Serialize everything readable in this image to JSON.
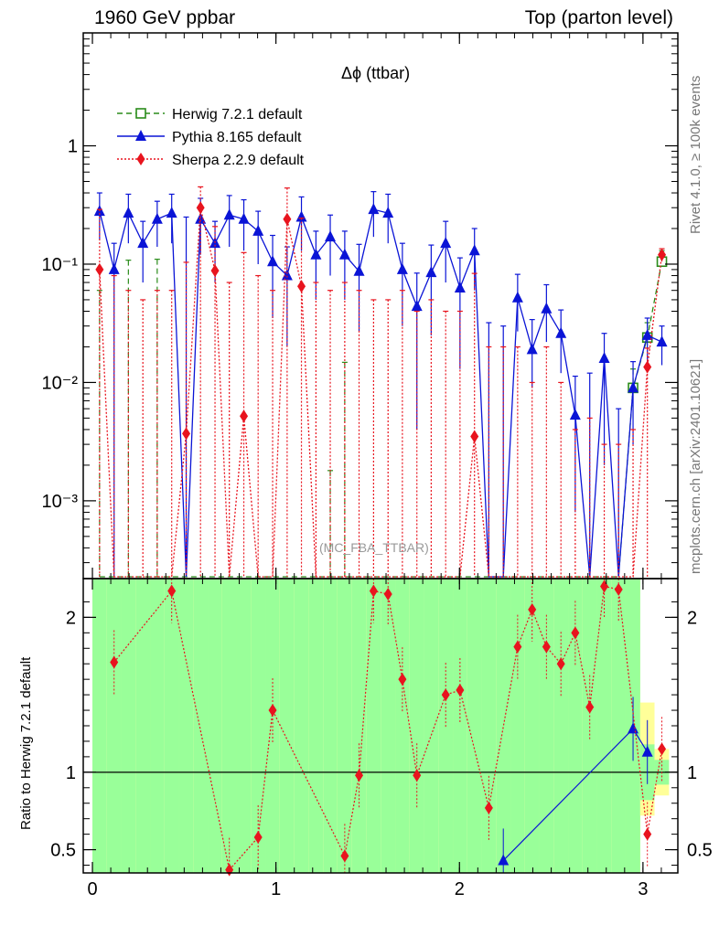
{
  "header": {
    "left": "1960 GeV ppbar",
    "right": "Top (parton level)"
  },
  "side_labels": {
    "rivet": "Rivet 4.1.0, ≥ 100k events",
    "mcplots": "mcplots.cern.ch [arXiv:2401.10621]"
  },
  "colors": {
    "herwig": "#2a8c1a",
    "pythia": "#0a14d6",
    "sherpa": "#e8141e",
    "band_green": "#99ff99",
    "band_yellow": "#ffff99"
  },
  "chart_data": [
    {
      "type": "line",
      "title": "Δϕ (ttbar)",
      "watermark": "(MC_FBA_TTBAR)",
      "xlabel": "",
      "ylabel": "",
      "yscale": "log",
      "xlim": [
        -0.05,
        3.19
      ],
      "ylim": [
        0.00022,
        9
      ],
      "x_ticks": [
        "0",
        "1",
        "2",
        "3"
      ],
      "y_ticks": [
        {
          "value": 0.001,
          "label": "10⁻³"
        },
        {
          "value": 0.01,
          "label": "10⁻²"
        },
        {
          "value": 0.1,
          "label": "10⁻¹"
        },
        {
          "value": 1,
          "label": "1"
        }
      ],
      "legend_position": "top-left",
      "series": [
        {
          "name": "Herwig 7.2.1 default",
          "style": "dashed-open-square",
          "x": [
            0.039,
            0.118,
            0.196,
            0.275,
            0.353,
            0.432,
            0.511,
            0.589,
            0.668,
            0.746,
            0.825,
            0.903,
            0.982,
            1.061,
            1.139,
            1.218,
            1.296,
            1.375,
            1.453,
            1.532,
            1.611,
            1.689,
            1.768,
            1.846,
            1.925,
            2.003,
            2.082,
            2.16,
            2.239,
            2.317,
            2.396,
            2.474,
            2.553,
            2.631,
            2.71,
            2.789,
            2.867,
            2.946,
            3.024,
            3.103
          ],
          "values": [
            0,
            0,
            0,
            0,
            0,
            0,
            0,
            0,
            0,
            0,
            0,
            0,
            0,
            0,
            0,
            0,
            0,
            0,
            0,
            0,
            0,
            0,
            0,
            0,
            0,
            0,
            0,
            0,
            0,
            0,
            0,
            0,
            0,
            0,
            0,
            0,
            0,
            0.009,
            0.024,
            0.105
          ],
          "err_up": [
            0.06,
            0,
            0.108,
            0,
            0.11,
            0,
            0,
            0,
            0,
            0,
            0,
            0,
            0,
            0,
            0,
            0,
            0.0018,
            0.0148,
            0,
            0,
            0,
            0,
            0,
            0,
            0,
            0,
            0,
            0,
            0,
            0,
            0,
            0,
            0,
            0,
            0,
            0,
            0,
            0.004,
            0.008,
            0.025
          ]
        },
        {
          "name": "Pythia 8.165 default",
          "style": "solid-filled-triangle",
          "x": [
            0.039,
            0.118,
            0.196,
            0.275,
            0.353,
            0.432,
            0.511,
            0.589,
            0.668,
            0.746,
            0.825,
            0.903,
            0.982,
            1.061,
            1.139,
            1.218,
            1.296,
            1.375,
            1.453,
            1.532,
            1.611,
            1.689,
            1.768,
            1.846,
            1.925,
            2.003,
            2.082,
            2.16,
            2.239,
            2.317,
            2.396,
            2.474,
            2.553,
            2.631,
            2.71,
            2.789,
            2.867,
            2.946,
            3.024,
            3.103
          ],
          "values": [
            0.28,
            0.09,
            0.27,
            0.15,
            0.24,
            0.27,
            0,
            0.24,
            0.15,
            0.26,
            0.24,
            0.19,
            0.105,
            0.08,
            0.25,
            0.12,
            0.17,
            0.12,
            0.087,
            0.29,
            0.27,
            0.09,
            0.044,
            0.085,
            0.15,
            0.063,
            0.13,
            0,
            0,
            0.052,
            0.019,
            0.042,
            0.026,
            0.0053,
            0,
            0.016,
            0,
            0.009,
            0.025,
            0.022
          ],
          "err_up": [
            0.12,
            0.06,
            0.12,
            0.08,
            0.1,
            0.12,
            0.25,
            0.12,
            0.08,
            0.12,
            0.11,
            0.09,
            0.07,
            0.06,
            0.12,
            0.07,
            0.09,
            0.07,
            0.06,
            0.12,
            0.12,
            0.06,
            0.04,
            0.06,
            0.08,
            0.05,
            0.07,
            0.032,
            0.03,
            0.03,
            0.015,
            0.025,
            0.015,
            0.006,
            0.012,
            0.01,
            0.006,
            0.006,
            0.01,
            0.008
          ],
          "err_down": [
            0.12,
            0.09,
            0.12,
            0.08,
            0.1,
            0.12,
            0,
            0.12,
            0.08,
            0.12,
            0.11,
            0.09,
            0.07,
            0.06,
            0.12,
            0.07,
            0.09,
            0.07,
            0.06,
            0.12,
            0.12,
            0.06,
            0.04,
            0.06,
            0.08,
            0.05,
            0.07,
            0,
            0,
            0.025,
            0.01,
            0.02,
            0.014,
            0.0045,
            0,
            0.014,
            0,
            0.006,
            0.01,
            0.008
          ]
        },
        {
          "name": "Sherpa 2.2.9 default",
          "style": "dotted-filled-diamond",
          "x": [
            0.039,
            0.118,
            0.196,
            0.275,
            0.353,
            0.432,
            0.511,
            0.589,
            0.668,
            0.746,
            0.825,
            0.903,
            0.982,
            1.061,
            1.139,
            1.218,
            1.296,
            1.375,
            1.453,
            1.532,
            1.611,
            1.689,
            1.768,
            1.846,
            1.925,
            2.003,
            2.082,
            2.16,
            2.239,
            2.317,
            2.396,
            2.474,
            2.553,
            2.631,
            2.71,
            2.789,
            2.867,
            2.946,
            3.024,
            3.103
          ],
          "values": [
            0.09,
            0,
            0,
            0,
            0,
            0,
            0.0037,
            0.3,
            0.088,
            0,
            0.0052,
            0,
            0,
            0.24,
            0.065,
            0,
            0,
            0,
            0,
            0,
            0,
            0,
            0,
            0,
            0,
            0,
            0.0035,
            0,
            0,
            0,
            0,
            0,
            0,
            0,
            0,
            0,
            0,
            0,
            0.0135,
            0.12
          ],
          "err_up": [
            0.2,
            0.08,
            0.06,
            0.05,
            0.06,
            0.06,
            0.1,
            0.15,
            0.12,
            0.07,
            0.12,
            0.08,
            0.06,
            0.2,
            0.18,
            0.07,
            0.06,
            0.07,
            0.06,
            0.05,
            0.05,
            0.06,
            0.04,
            0.05,
            0.04,
            0.04,
            0.08,
            0.02,
            0.02,
            0.02,
            0.01,
            0.02,
            0.01,
            0.004,
            0.005,
            0.003,
            0.003,
            0.004,
            0.006,
            0.015
          ],
          "err_down": [
            0.09,
            0,
            0,
            0,
            0,
            0,
            0.0037,
            0.3,
            0.088,
            0,
            0.0052,
            0,
            0,
            0.24,
            0.065,
            0,
            0,
            0,
            0,
            0,
            0,
            0,
            0,
            0,
            0,
            0,
            0.0035,
            0,
            0,
            0,
            0,
            0,
            0,
            0,
            0,
            0,
            0,
            0,
            0.0135,
            0.015
          ]
        }
      ]
    },
    {
      "type": "line",
      "title": "",
      "xlabel": "",
      "ylabel": "Ratio to Herwig 7.2.1 default",
      "yscale": "linear",
      "xlim": [
        -0.05,
        3.19
      ],
      "ylim": [
        0.35,
        2.25
      ],
      "x_ticks": [
        "0",
        "1",
        "2",
        "3"
      ],
      "y_ticks": [
        {
          "value": 0.5,
          "label": "0.5"
        },
        {
          "value": 1,
          "label": "1"
        },
        {
          "value": 2,
          "label": "2"
        }
      ],
      "reference_line": 1,
      "bands": {
        "x_edges": [
          0.0,
          0.078,
          0.157,
          0.235,
          0.314,
          0.392,
          0.471,
          0.55,
          0.628,
          0.707,
          0.785,
          0.864,
          0.942,
          1.021,
          1.1,
          1.178,
          1.257,
          1.335,
          1.414,
          1.492,
          1.571,
          1.65,
          1.728,
          1.807,
          1.885,
          1.964,
          2.042,
          2.121,
          2.199,
          2.278,
          2.356,
          2.435,
          2.513,
          2.592,
          2.67,
          2.749,
          2.827,
          2.906,
          2.985,
          3.063,
          3.142
        ],
        "green_low": [
          0.35,
          0.35,
          0.35,
          0.35,
          0.35,
          0.35,
          0.35,
          0.35,
          0.35,
          0.35,
          0.35,
          0.35,
          0.35,
          0.35,
          0.35,
          0.35,
          0.35,
          0.35,
          0.35,
          0.35,
          0.35,
          0.35,
          0.35,
          0.35,
          0.35,
          0.35,
          0.35,
          0.35,
          0.35,
          0.35,
          0.35,
          0.35,
          0.35,
          0.35,
          0.35,
          0.35,
          0.35,
          0.35,
          0.82,
          0.92
        ],
        "green_high": [
          2.25,
          2.25,
          2.25,
          2.25,
          2.25,
          2.25,
          2.25,
          2.25,
          2.25,
          2.25,
          2.25,
          2.25,
          2.25,
          2.25,
          2.25,
          2.25,
          2.25,
          2.25,
          2.25,
          2.25,
          2.25,
          2.25,
          2.25,
          2.25,
          2.25,
          2.25,
          2.25,
          2.25,
          2.25,
          2.25,
          2.25,
          2.25,
          2.25,
          2.25,
          2.25,
          2.25,
          2.25,
          2.25,
          1.18,
          1.08
        ],
        "yellow_low": [
          0.35,
          0.35,
          0.35,
          0.35,
          0.35,
          0.35,
          0.35,
          0.35,
          0.35,
          0.35,
          0.35,
          0.35,
          0.35,
          0.35,
          0.35,
          0.35,
          0.35,
          0.35,
          0.35,
          0.35,
          0.35,
          0.35,
          0.35,
          0.35,
          0.35,
          0.35,
          0.35,
          0.35,
          0.35,
          0.35,
          0.35,
          0.35,
          0.35,
          0.35,
          0.35,
          0.35,
          0.35,
          0.35,
          0.72,
          0.85
        ],
        "yellow_high": [
          2.25,
          2.25,
          2.25,
          2.25,
          2.25,
          2.25,
          2.25,
          2.25,
          2.25,
          2.25,
          2.25,
          2.25,
          2.25,
          2.25,
          2.25,
          2.25,
          2.25,
          2.25,
          2.25,
          2.25,
          2.25,
          2.25,
          2.25,
          2.25,
          2.25,
          2.25,
          2.25,
          2.25,
          2.25,
          2.25,
          2.25,
          2.25,
          2.25,
          2.25,
          2.25,
          2.25,
          2.25,
          2.25,
          1.45,
          1.15
        ]
      },
      "series": [
        {
          "name": "Pythia 8.165 / Herwig 7.2.1 default",
          "style": "solid-filled-triangle",
          "x": [
            2.239,
            2.946,
            3.024
          ],
          "values": [
            0.43,
            1.28,
            1.13
          ]
        },
        {
          "name": "Sherpa 2.2.9 / Herwig 7.2.1 default",
          "style": "dotted-filled-diamond",
          "x": [
            0.118,
            0.432,
            0.746,
            0.903,
            0.982,
            1.375,
            1.453,
            1.532,
            1.611,
            1.689,
            1.768,
            1.925,
            2.003,
            2.16,
            2.317,
            2.396,
            2.474,
            2.553,
            2.631,
            2.71,
            2.789,
            2.867,
            3.024,
            3.103
          ],
          "values": [
            1.71,
            2.17,
            0.37,
            0.58,
            1.4,
            0.46,
            0.98,
            2.17,
            2.15,
            1.6,
            0.98,
            1.5,
            1.53,
            0.77,
            1.81,
            2.05,
            1.81,
            1.7,
            1.9,
            1.42,
            2.2,
            2.18,
            0.6,
            1.15
          ]
        }
      ]
    }
  ]
}
